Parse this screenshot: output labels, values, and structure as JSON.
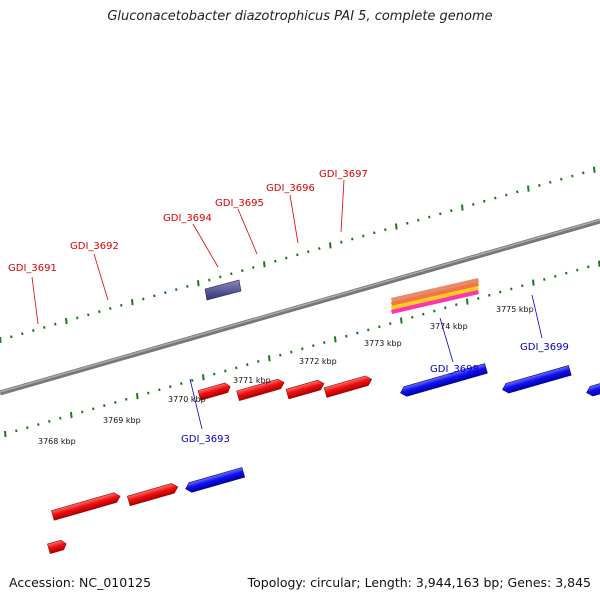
{
  "title": "Gluconacetobacter diazotrophicus PAI 5, complete genome",
  "footer": {
    "accession": "Accession: NC_010125",
    "summary": "Topology: circular; Length: 3,944,163 bp; Genes: 3,845"
  },
  "colors": {
    "forward_gene": "#ee1111",
    "reverse_gene": "#1111ee",
    "backbone": "#888888",
    "tick": "#1a7a1a",
    "other_feature": "#555599"
  },
  "genes": [
    {
      "name": "GDI_3691",
      "strand": "forward"
    },
    {
      "name": "GDI_3692",
      "strand": "forward"
    },
    {
      "name": "GDI_3693",
      "strand": "reverse"
    },
    {
      "name": "GDI_3694",
      "strand": "forward"
    },
    {
      "name": "GDI_3695",
      "strand": "forward"
    },
    {
      "name": "GDI_3696",
      "strand": "forward"
    },
    {
      "name": "GDI_3697",
      "strand": "forward"
    },
    {
      "name": "GDI_3698",
      "strand": "reverse"
    },
    {
      "name": "GDI_3699",
      "strand": "reverse"
    }
  ],
  "scale": {
    "unit": "kbp",
    "labels": [
      "3768 kbp",
      "3769 kbp",
      "3770 kbp",
      "3771 kbp",
      "3772 kbp",
      "3773 kbp",
      "3774 kbp",
      "3775 kbp"
    ]
  }
}
